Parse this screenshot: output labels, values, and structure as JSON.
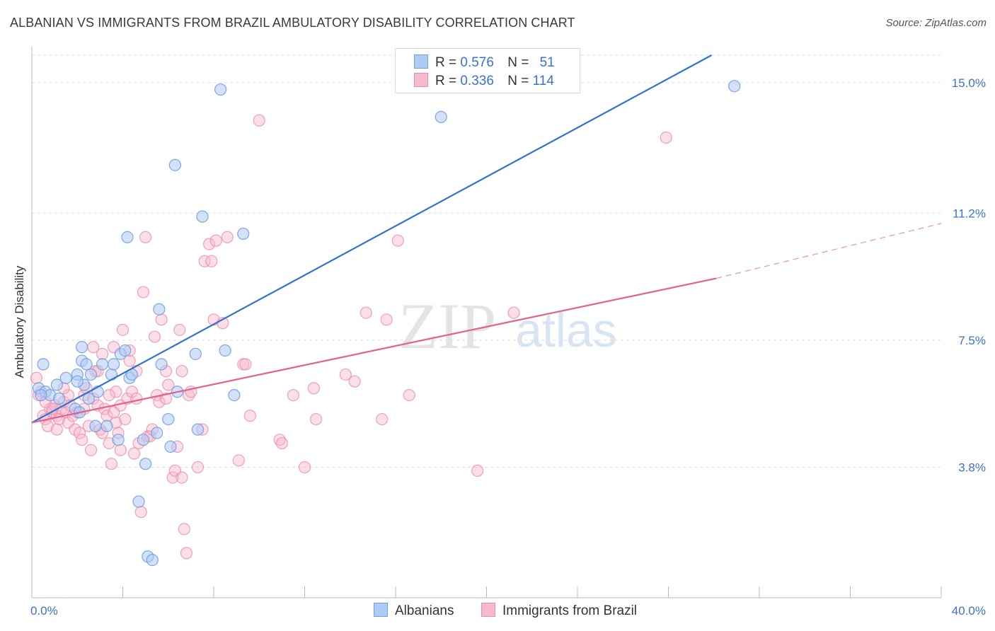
{
  "title": "ALBANIAN VS IMMIGRANTS FROM BRAZIL AMBULATORY DISABILITY CORRELATION CHART",
  "source": "Source: ZipAtlas.com",
  "watermark_zip": "ZIP",
  "watermark_atlas": "atlas",
  "legend": {
    "albanian": {
      "r_label": "R =",
      "r_value": "0.576",
      "n_label": "N =",
      "n_value": "51"
    },
    "brazil": {
      "r_label": "R =",
      "r_value": "0.336",
      "n_label": "N =",
      "n_value": "114"
    }
  },
  "bottom_legend": {
    "albanians": "Albanians",
    "brazil": "Immigrants from Brazil"
  },
  "colors": {
    "albanian_fill": "#aecbf5",
    "albanian_stroke": "#6f9fe0",
    "albanian_line": "#2f74d0",
    "brazil_fill": "#f7b9cc",
    "brazil_stroke": "#ec8bab",
    "brazil_line": "#e0628e",
    "tick_label": "#3a72cc",
    "grid": "#dddddd"
  },
  "chart_data": {
    "type": "scatter",
    "title": "ALBANIAN VS IMMIGRANTS FROM BRAZIL AMBULATORY DISABILITY CORRELATION CHART",
    "xlabel": "",
    "ylabel": "Ambulatory Disability",
    "xlim": [
      0,
      40
    ],
    "ylim": [
      0,
      15.8
    ],
    "x_tick_labels": [
      "0.0%",
      "40.0%"
    ],
    "y_ticks": [
      3.8,
      7.5,
      11.2,
      15.0
    ],
    "y_tick_labels": [
      "3.8%",
      "7.5%",
      "11.2%",
      "15.0%"
    ],
    "grid": true,
    "series": [
      {
        "name": "Albanians",
        "trend": {
          "x": [
            0,
            29.9
          ],
          "y": [
            5.1,
            15.8
          ]
        },
        "points": [
          [
            0.3,
            6.1
          ],
          [
            0.5,
            6.8
          ],
          [
            0.6,
            6.0
          ],
          [
            0.8,
            5.9
          ],
          [
            1.1,
            6.2
          ],
          [
            1.2,
            5.8
          ],
          [
            1.5,
            6.4
          ],
          [
            1.9,
            5.5
          ],
          [
            2.0,
            6.5
          ],
          [
            2.1,
            5.4
          ],
          [
            2.3,
            6.2
          ],
          [
            2.5,
            5.8
          ],
          [
            2.2,
            6.9
          ],
          [
            2.0,
            6.3
          ],
          [
            2.4,
            6.8
          ],
          [
            2.2,
            7.3
          ],
          [
            2.6,
            6.5
          ],
          [
            2.8,
            5.0
          ],
          [
            2.9,
            6.0
          ],
          [
            3.1,
            6.8
          ],
          [
            3.3,
            5.0
          ],
          [
            3.5,
            6.5
          ],
          [
            3.8,
            4.6
          ],
          [
            3.6,
            6.8
          ],
          [
            3.9,
            7.1
          ],
          [
            4.1,
            7.2
          ],
          [
            4.3,
            6.4
          ],
          [
            4.4,
            6.5
          ],
          [
            4.2,
            10.5
          ],
          [
            4.7,
            2.8
          ],
          [
            4.9,
            4.6
          ],
          [
            5.0,
            3.9
          ],
          [
            5.1,
            1.2
          ],
          [
            5.3,
            1.1
          ],
          [
            5.5,
            4.8
          ],
          [
            5.6,
            8.4
          ],
          [
            5.7,
            6.8
          ],
          [
            6.0,
            5.2
          ],
          [
            6.1,
            4.4
          ],
          [
            6.4,
            6.0
          ],
          [
            6.3,
            12.6
          ],
          [
            7.2,
            7.1
          ],
          [
            7.3,
            4.9
          ],
          [
            7.5,
            11.1
          ],
          [
            8.3,
            14.8
          ],
          [
            8.5,
            7.2
          ],
          [
            8.9,
            5.9
          ],
          [
            9.3,
            10.6
          ],
          [
            18.0,
            14.0
          ],
          [
            30.9,
            14.9
          ],
          [
            0.4,
            5.9
          ]
        ]
      },
      {
        "name": "Immigrants from Brazil",
        "trend": {
          "x": [
            0,
            30.1
          ],
          "y": [
            5.1,
            9.3
          ]
        },
        "trend_dashed": {
          "x": [
            30.1,
            40
          ],
          "y": [
            9.3,
            10.9
          ]
        },
        "points": [
          [
            0.2,
            6.4
          ],
          [
            0.3,
            5.9
          ],
          [
            0.4,
            6.0
          ],
          [
            0.5,
            5.3
          ],
          [
            0.6,
            5.2
          ],
          [
            0.7,
            5.0
          ],
          [
            0.8,
            5.5
          ],
          [
            0.9,
            5.4
          ],
          [
            1.0,
            5.6
          ],
          [
            1.1,
            5.3
          ],
          [
            1.2,
            5.2
          ],
          [
            1.3,
            5.5
          ],
          [
            1.4,
            5.7
          ],
          [
            1.5,
            5.4
          ],
          [
            1.6,
            5.1
          ],
          [
            1.7,
            5.6
          ],
          [
            1.8,
            5.3
          ],
          [
            1.9,
            4.9
          ],
          [
            2.0,
            5.4
          ],
          [
            2.1,
            4.8
          ],
          [
            2.2,
            4.6
          ],
          [
            2.3,
            5.9
          ],
          [
            2.4,
            6.1
          ],
          [
            2.5,
            5.0
          ],
          [
            2.6,
            4.3
          ],
          [
            2.7,
            5.8
          ],
          [
            2.7,
            7.3
          ],
          [
            2.8,
            6.6
          ],
          [
            2.9,
            5.6
          ],
          [
            3.0,
            4.9
          ],
          [
            3.1,
            4.8
          ],
          [
            3.2,
            5.5
          ],
          [
            3.3,
            5.3
          ],
          [
            3.4,
            4.5
          ],
          [
            3.5,
            3.9
          ],
          [
            3.6,
            7.3
          ],
          [
            3.7,
            5.1
          ],
          [
            3.7,
            6.0
          ],
          [
            3.8,
            4.8
          ],
          [
            3.9,
            5.6
          ],
          [
            4.0,
            7.8
          ],
          [
            4.1,
            5.2
          ],
          [
            4.2,
            5.8
          ],
          [
            4.3,
            6.9
          ],
          [
            4.4,
            6.0
          ],
          [
            4.5,
            4.2
          ],
          [
            4.6,
            5.8
          ],
          [
            4.7,
            4.5
          ],
          [
            4.8,
            2.5
          ],
          [
            4.9,
            8.9
          ],
          [
            5.0,
            10.5
          ],
          [
            5.1,
            4.7
          ],
          [
            5.2,
            4.7
          ],
          [
            5.3,
            4.9
          ],
          [
            5.4,
            7.6
          ],
          [
            5.5,
            5.9
          ],
          [
            5.6,
            5.7
          ],
          [
            5.7,
            8.1
          ],
          [
            5.9,
            6.6
          ],
          [
            6.0,
            6.2
          ],
          [
            6.2,
            3.5
          ],
          [
            6.3,
            3.7
          ],
          [
            6.4,
            4.4
          ],
          [
            6.5,
            7.8
          ],
          [
            6.6,
            3.5
          ],
          [
            6.7,
            2.0
          ],
          [
            6.8,
            1.3
          ],
          [
            6.9,
            5.9
          ],
          [
            7.0,
            6.0
          ],
          [
            7.3,
            3.8
          ],
          [
            7.5,
            4.9
          ],
          [
            7.6,
            9.8
          ],
          [
            7.8,
            10.3
          ],
          [
            7.9,
            9.8
          ],
          [
            8.0,
            8.1
          ],
          [
            8.1,
            10.4
          ],
          [
            8.4,
            8.0
          ],
          [
            8.6,
            10.5
          ],
          [
            9.1,
            4.0
          ],
          [
            9.3,
            6.8
          ],
          [
            9.4,
            6.8
          ],
          [
            9.6,
            5.3
          ],
          [
            10.0,
            13.9
          ],
          [
            10.9,
            4.6
          ],
          [
            11.0,
            4.5
          ],
          [
            11.5,
            5.9
          ],
          [
            12.0,
            3.8
          ],
          [
            12.4,
            6.1
          ],
          [
            12.5,
            5.2
          ],
          [
            13.8,
            6.5
          ],
          [
            14.2,
            6.3
          ],
          [
            14.7,
            8.3
          ],
          [
            15.4,
            5.2
          ],
          [
            15.6,
            8.1
          ],
          [
            16.1,
            10.4
          ],
          [
            16.6,
            5.9
          ],
          [
            19.6,
            3.7
          ],
          [
            21.2,
            8.3
          ],
          [
            27.9,
            13.4
          ],
          [
            0.9,
            5.5
          ],
          [
            1.6,
            5.9
          ],
          [
            2.9,
            6.6
          ],
          [
            3.1,
            7.1
          ],
          [
            3.4,
            5.9
          ],
          [
            3.9,
            4.3
          ],
          [
            4.3,
            7.2
          ],
          [
            5.9,
            5.8
          ],
          [
            6.6,
            6.6
          ],
          [
            1.1,
            4.9
          ],
          [
            2.3,
            5.5
          ],
          [
            3.6,
            5.4
          ],
          [
            0.6,
            5.7
          ],
          [
            1.4,
            6.1
          ],
          [
            4.6,
            6.6
          ]
        ]
      }
    ]
  }
}
